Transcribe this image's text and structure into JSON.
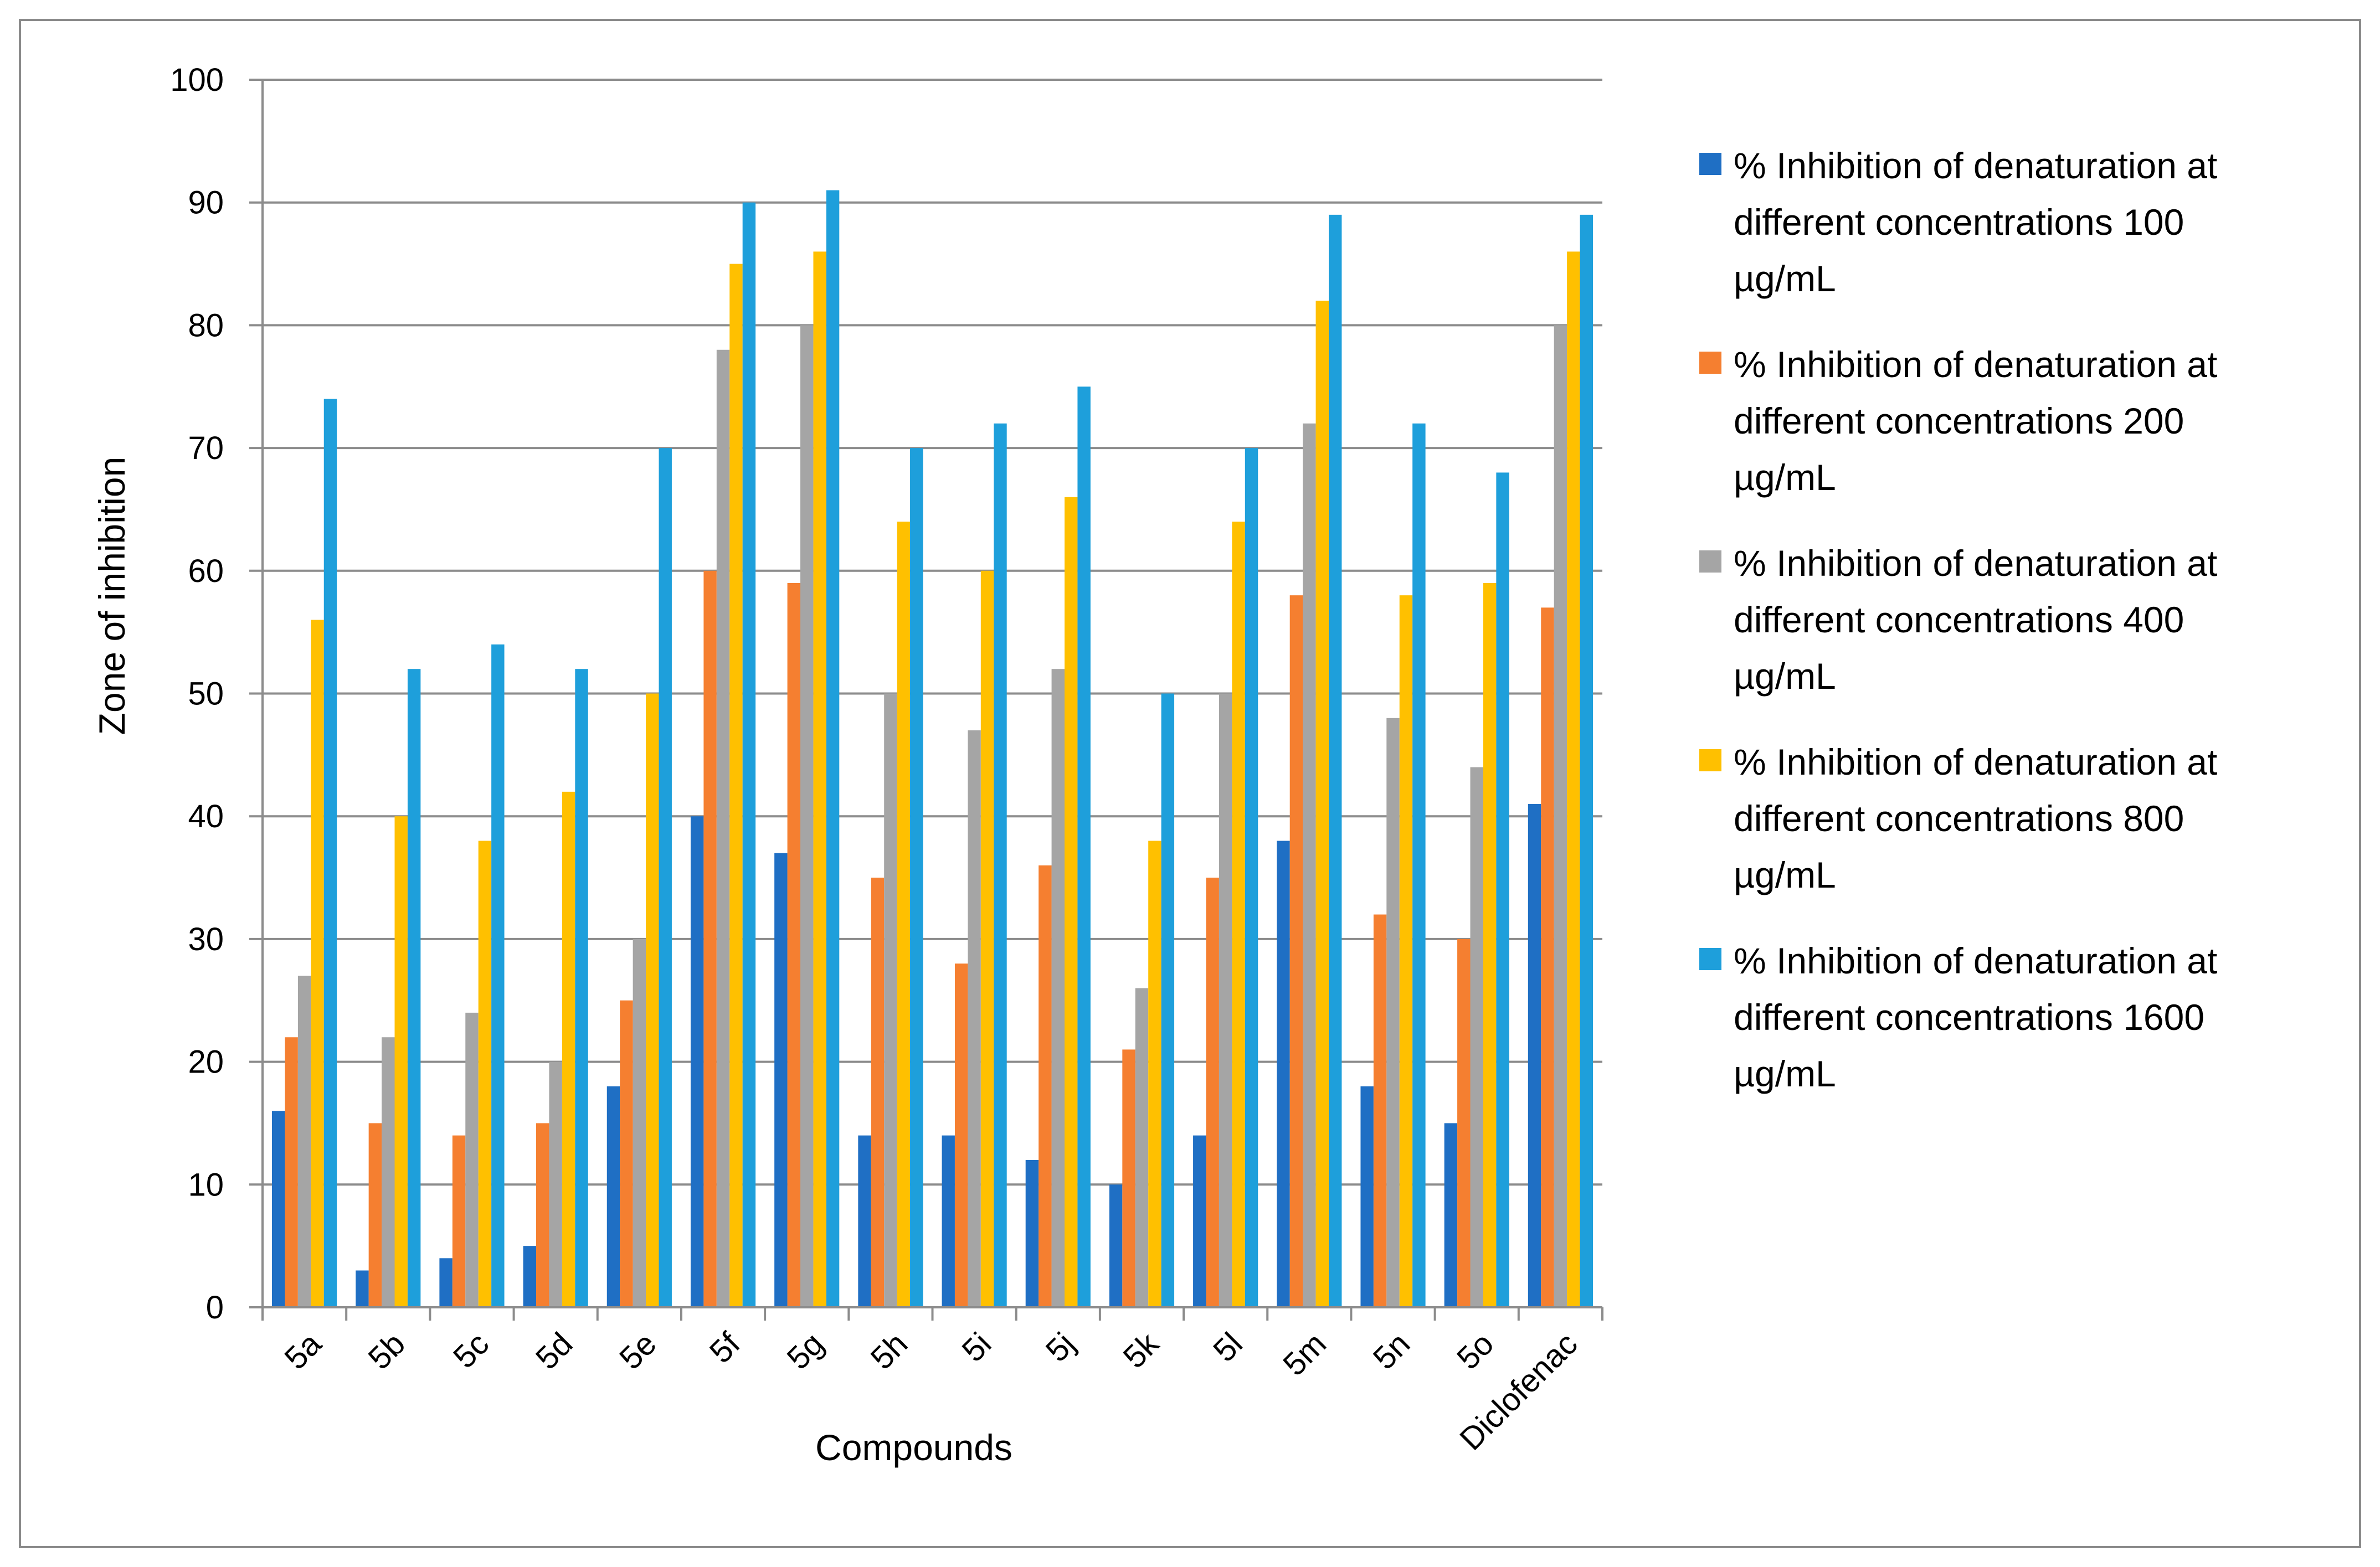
{
  "chart_data": {
    "type": "bar",
    "title": "",
    "xlabel": "Compounds",
    "ylabel": "Zone of inhibition",
    "ylim": [
      0,
      100
    ],
    "yticks": [
      0,
      10,
      20,
      30,
      40,
      50,
      60,
      70,
      80,
      90,
      100
    ],
    "grid": true,
    "legend_position": "right",
    "categories": [
      "5a",
      "5b",
      "5c",
      "5d",
      "5e",
      "5f",
      "5g",
      "5h",
      "5i",
      "5j",
      "5k",
      "5l",
      "5m",
      "5n",
      "5o",
      "Diclofenac"
    ],
    "series": [
      {
        "name": "% Inhibition of denaturation at different concentrations 100 µg/mL",
        "legend_lines": [
          "% Inhibition of denaturation at",
          "different concentrations 100",
          "µg/mL"
        ],
        "color": "#1F6FC4",
        "values": [
          16,
          3,
          4,
          5,
          18,
          40,
          37,
          14,
          14,
          12,
          10,
          14,
          38,
          18,
          15,
          41
        ]
      },
      {
        "name": "% Inhibition of denaturation at different concentrations 200 µg/mL",
        "legend_lines": [
          "% Inhibition of denaturation at",
          "different concentrations 200",
          "µg/mL"
        ],
        "color": "#F57F30",
        "values": [
          22,
          15,
          14,
          15,
          25,
          60,
          59,
          35,
          28,
          36,
          21,
          35,
          58,
          32,
          30,
          57
        ]
      },
      {
        "name": "% Inhibition of denaturation at different concentrations 400 µg/mL",
        "legend_lines": [
          "% Inhibition of denaturation at",
          "different concentrations 400",
          "µg/mL"
        ],
        "color": "#A5A5A5",
        "values": [
          27,
          22,
          24,
          20,
          30,
          78,
          80,
          50,
          47,
          52,
          26,
          50,
          72,
          48,
          44,
          80
        ]
      },
      {
        "name": "% Inhibition of denaturation at different concentrations 800 µg/mL",
        "legend_lines": [
          "% Inhibition of denaturation at",
          "different concentrations 800",
          "µg/mL"
        ],
        "color": "#FFC000",
        "values": [
          56,
          40,
          38,
          42,
          50,
          85,
          86,
          64,
          60,
          66,
          38,
          64,
          82,
          58,
          59,
          86
        ]
      },
      {
        "name": "% Inhibition of denaturation at different concentrations 1600 µg/mL",
        "legend_lines": [
          "% Inhibition of denaturation at",
          "different concentrations 1600",
          "µg/mL"
        ],
        "color": "#1E9FDB",
        "values": [
          74,
          52,
          54,
          52,
          70,
          90,
          91,
          70,
          72,
          75,
          50,
          70,
          89,
          72,
          68,
          89
        ]
      }
    ]
  }
}
